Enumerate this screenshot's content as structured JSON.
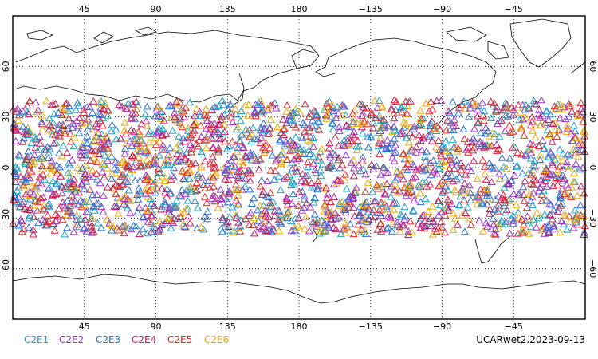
{
  "map": {
    "projection": "equirectangular",
    "lon_range": [
      0,
      360
    ],
    "lat_range": [
      -90,
      90
    ],
    "grid": "dotted",
    "coastlines": true
  },
  "axes": {
    "top_lon_labels": [
      "45",
      "90",
      "135",
      "180",
      "−135",
      "−90",
      "−45"
    ],
    "bottom_lon_labels": [
      "45",
      "90",
      "135",
      "180",
      "−135",
      "−90",
      "−45"
    ],
    "lon_values": [
      45,
      90,
      135,
      180,
      225,
      270,
      315
    ],
    "left_lat_labels": [
      "60",
      "30",
      "0",
      "−30",
      "−60"
    ],
    "right_lat_labels": [
      "60",
      "30",
      "0",
      "−30",
      "−60"
    ],
    "lat_values": [
      60,
      30,
      0,
      -30,
      -60
    ]
  },
  "legend": [
    {
      "label": "C2E1",
      "color": "#1aa3c8"
    },
    {
      "label": "C2E2",
      "color": "#9b30c8"
    },
    {
      "label": "C2E3",
      "color": "#2a6fd6"
    },
    {
      "label": "C2E4",
      "color": "#c2185b"
    },
    {
      "label": "C2E5",
      "color": "#e3262b"
    },
    {
      "label": "C2E6",
      "color": "#f2a800"
    }
  ],
  "stamp": "UCARwet2.2023-09-13",
  "observations": {
    "marker": "triangle-outline",
    "lat_band": [
      -40,
      40
    ],
    "lon_range": [
      0,
      360
    ]
  }
}
